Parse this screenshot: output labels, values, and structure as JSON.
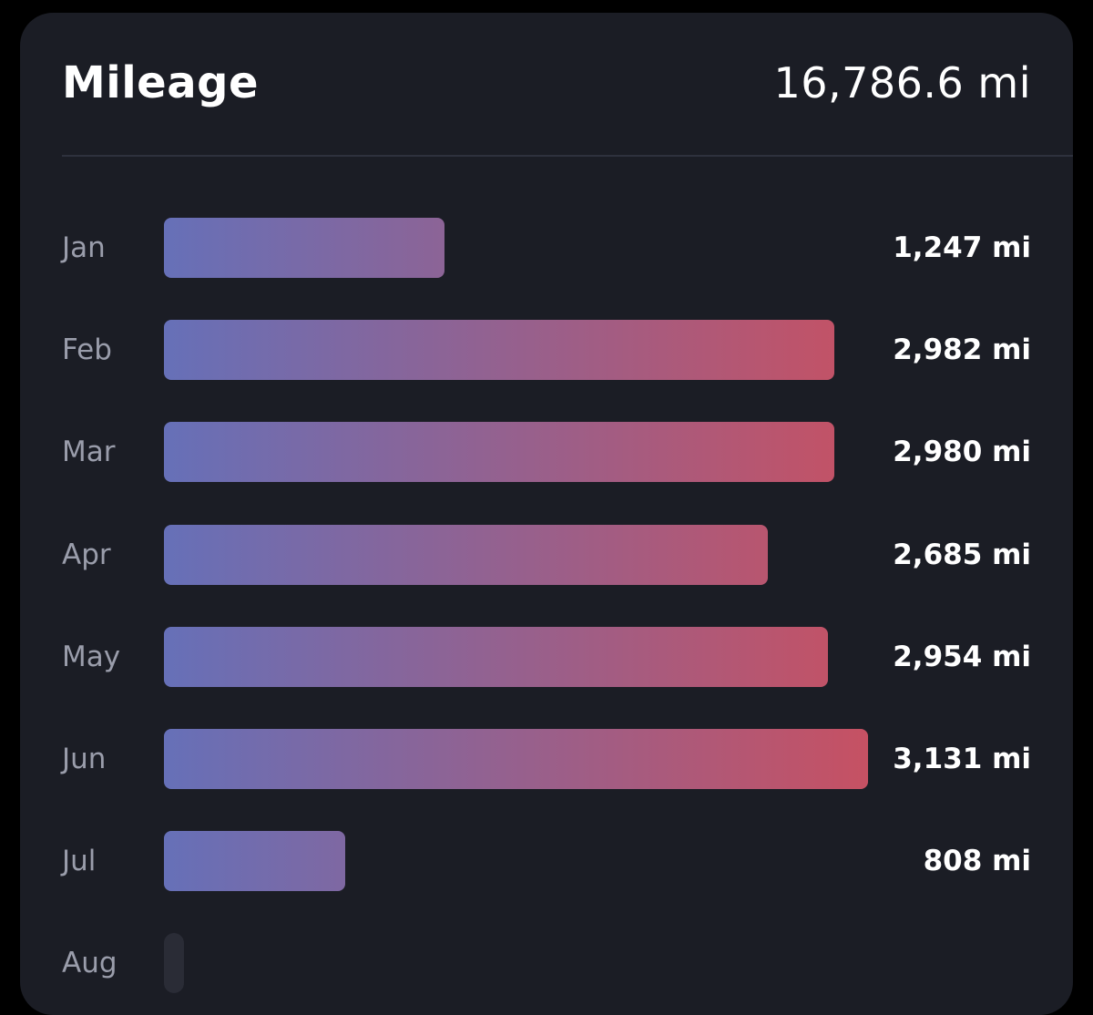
{
  "card": {
    "title": "Mileage",
    "total": "16,786.6 mi"
  },
  "colors": {
    "background": "#000000",
    "card_background": "#1b1d25",
    "divider": "#2e313d",
    "month_label": "#9a9dab",
    "value_text": "#ffffff",
    "bar_gradient_start": "#6670b8",
    "bar_gradient_end": "#c65163",
    "empty_bar": "#2a2c36"
  },
  "chart_data": {
    "type": "bar",
    "orientation": "horizontal",
    "categories": [
      "Jan",
      "Feb",
      "Mar",
      "Apr",
      "May",
      "Jun",
      "Jul",
      "Aug"
    ],
    "values": [
      1247,
      2982,
      2980,
      2685,
      2954,
      3131,
      808,
      0
    ],
    "value_labels": [
      "1,247 mi",
      "2,982 mi",
      "2,980 mi",
      "2,685 mi",
      "2,954 mi",
      "3,131 mi",
      "808 mi",
      ""
    ],
    "unit": "mi",
    "xlim": [
      0,
      3131
    ],
    "grid": false,
    "legend": "none"
  }
}
